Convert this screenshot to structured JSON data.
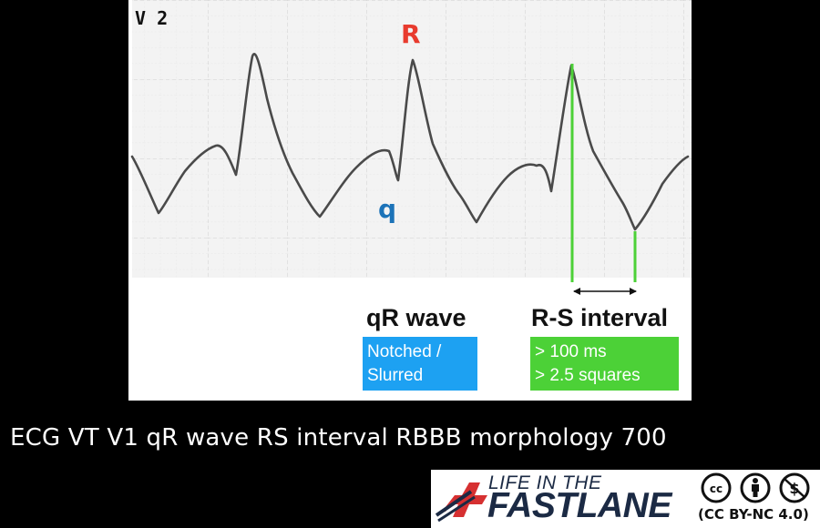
{
  "figure": {
    "lead_label": "V 2",
    "r_label": "R",
    "q_label": "q",
    "qr": {
      "heading": "qR wave",
      "lines": [
        "Notched /",
        "Slurred"
      ]
    },
    "rs": {
      "heading": "R-S interval",
      "lines": [
        "> 100 ms",
        "> 2.5 squares"
      ]
    }
  },
  "caption": "ECG VT V1 qR wave RS interval RBBB morphology 700",
  "logo": {
    "line1": "LIFE IN THE",
    "line2": "FASTLANE",
    "license": "(CC BY-NC 4.0)",
    "cc_icons": [
      "cc-icon",
      "attribution-icon",
      "noncommercial-icon"
    ]
  },
  "colors": {
    "r_label": "#e83b2e",
    "q_label": "#1c73b8",
    "qr_box": "#1da1f2",
    "rs_box": "#4cd137",
    "marker": "#4cd137",
    "trace": "#4a4a4a",
    "logo_red": "#d63031",
    "logo_navy": "#1b2a44"
  }
}
